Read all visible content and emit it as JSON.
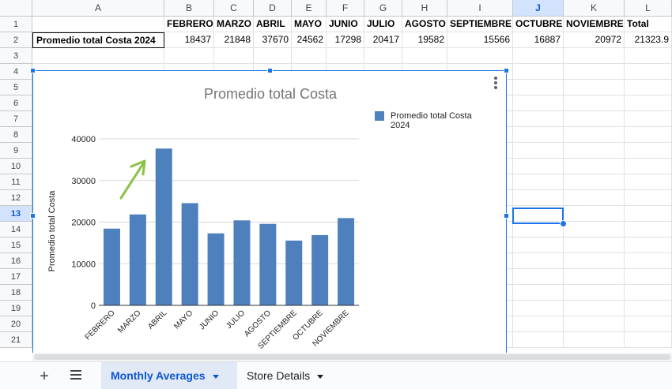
{
  "columns": [
    "A",
    "B",
    "C",
    "D",
    "E",
    "F",
    "G",
    "H",
    "I",
    "J",
    "K",
    "L"
  ],
  "selected_column": "J",
  "rows": [
    "1",
    "2",
    "3",
    "4",
    "5",
    "6",
    "7",
    "8",
    "9",
    "10",
    "11",
    "12",
    "13",
    "14",
    "15",
    "16",
    "17",
    "18",
    "19",
    "20",
    "21"
  ],
  "selected_row": "13",
  "sheet": {
    "header_row": [
      "",
      "FEBRERO",
      "MARZO",
      "ABRIL",
      "MAYO",
      "JUNIO",
      "JULIO",
      "AGOSTO",
      "SEPTIEMBRE",
      "OCTUBRE",
      "NOVIEMBRE",
      "Total"
    ],
    "data_row": [
      "Promedio total Costa 2024",
      "18437",
      "21848",
      "37670",
      "24562",
      "17298",
      "20417",
      "19582",
      "15566",
      "16887",
      "20972",
      "21323.9"
    ]
  },
  "chart_data": {
    "type": "bar",
    "title": "Promedio total Costa",
    "ylabel": "Promedio total Costa",
    "xlabel": "",
    "categories": [
      "FEBRERO",
      "MARZO",
      "ABRIL",
      "MAYO",
      "JUNIO",
      "JULIO",
      "AGOSTO",
      "SEPTIEMBRE",
      "OCTUBRE",
      "NOVIEMBRE"
    ],
    "series": [
      {
        "name": "Promedio total Costa 2024",
        "values": [
          18437,
          21848,
          37670,
          24562,
          17298,
          20417,
          19582,
          15566,
          16887,
          20972
        ],
        "color": "#4e80bd"
      }
    ],
    "ylim": [
      0,
      40000
    ],
    "yticks": [
      "0",
      "10000",
      "20000",
      "30000",
      "40000"
    ],
    "grid": true,
    "legend": "right",
    "annotation_color": "#8bc34a"
  },
  "tabs": [
    {
      "label": "Monthly Averages",
      "active": true
    },
    {
      "label": "Store Details",
      "active": false
    }
  ],
  "tabbar": {
    "add_symbol": "+"
  }
}
